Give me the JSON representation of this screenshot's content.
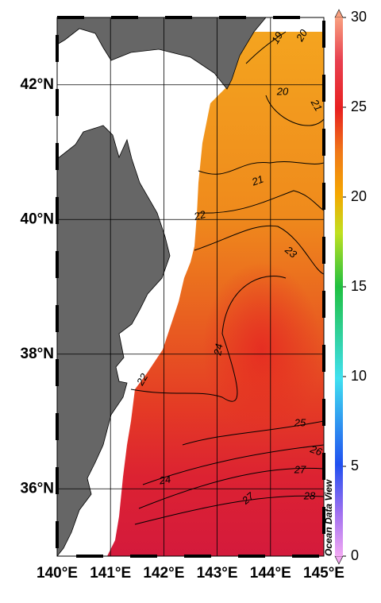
{
  "map": {
    "xlim": [
      140,
      145
    ],
    "ylim": [
      35,
      43
    ],
    "xticks": [
      {
        "value": 140,
        "label": "140°E"
      },
      {
        "value": 141,
        "label": "141°E"
      },
      {
        "value": 142,
        "label": "142°E"
      },
      {
        "value": 143,
        "label": "143°E"
      },
      {
        "value": 144,
        "label": "144°E"
      },
      {
        "value": 145,
        "label": "145°E"
      }
    ],
    "yticks": [
      {
        "value": 36,
        "label": "36°N"
      },
      {
        "value": 38,
        "label": "38°N"
      },
      {
        "value": 40,
        "label": "40°N"
      },
      {
        "value": 42,
        "label": "42°N"
      }
    ],
    "contour_labels": [
      19,
      20,
      20,
      21,
      21,
      22,
      23,
      24,
      22,
      25,
      26,
      27,
      27,
      28,
      24
    ]
  },
  "colorbar": {
    "lim": [
      0,
      30
    ],
    "ticks": [
      0,
      5,
      10,
      15,
      20,
      25,
      30
    ]
  },
  "credit": "Ocean Data View"
}
